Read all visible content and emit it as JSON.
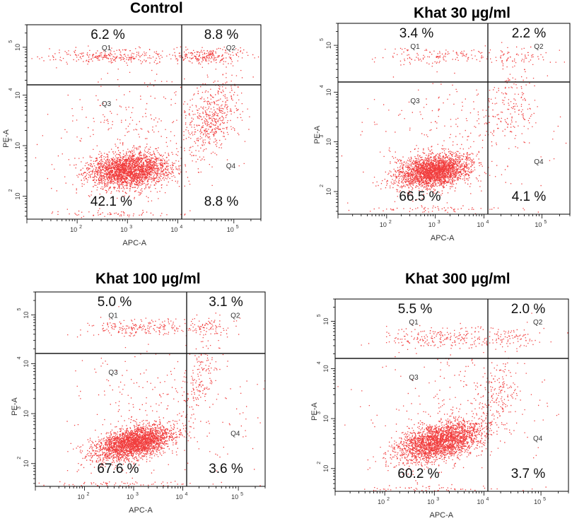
{
  "figure": {
    "colors": {
      "dot": "#ee1c1c",
      "axis": "#000000",
      "label": "#333333",
      "gate": "#1a1a1a"
    }
  },
  "chart_data": [
    {
      "type": "scatter",
      "title": "Control",
      "xlabel": "APC-A",
      "ylabel": "PE-A",
      "x_scale": "log",
      "y_scale": "log",
      "xlim": [
        10,
        300000
      ],
      "ylim": [
        35,
        300000
      ],
      "x_ticks": [
        100,
        1000,
        10000,
        100000
      ],
      "y_ticks": [
        100,
        1000,
        10000,
        100000
      ],
      "x_tick_labels": [
        "10",
        "10",
        "10",
        "10"
      ],
      "y_tick_labels": [
        "10",
        "10",
        "10",
        "10"
      ],
      "tick_exponents": [
        "2",
        "3",
        "4",
        "5"
      ],
      "quadrant_gate": {
        "x": 12000,
        "y": 16000
      },
      "quadrant_labels": [
        "Q1",
        "Q2",
        "Q3",
        "Q4"
      ],
      "quadrant_percent": {
        "Q1": "6.2 %",
        "Q2": "8.8 %",
        "Q3": "42.1 %",
        "Q4": "8.8 %"
      },
      "clusters": [
        {
          "cx": 3.02,
          "cy": 2.52,
          "sx": 0.4,
          "sy": 0.17,
          "n": 2400,
          "rho": 0.1
        },
        {
          "cx": 2.7,
          "cy": 4.82,
          "sx": 0.62,
          "sy": 0.08,
          "n": 260,
          "rho": 0
        },
        {
          "cx": 4.55,
          "cy": 4.82,
          "sx": 0.3,
          "sy": 0.08,
          "n": 220,
          "rho": 0
        },
        {
          "cx": 4.6,
          "cy": 3.55,
          "sx": 0.24,
          "sy": 0.36,
          "n": 480,
          "rho": 0.3
        },
        {
          "cx": 3.3,
          "cy": 3.2,
          "sx": 0.9,
          "sy": 0.7,
          "n": 320,
          "rho": 0
        },
        {
          "cx": 2.8,
          "cy": 1.65,
          "sx": 0.85,
          "sy": 0.03,
          "n": 60,
          "rho": 0
        }
      ]
    },
    {
      "type": "scatter",
      "title": "Khat 30 µg/ml",
      "xlabel": "APC-A",
      "ylabel": "PE-A",
      "x_scale": "log",
      "y_scale": "log",
      "xlim": [
        10,
        300000
      ],
      "ylim": [
        35,
        300000
      ],
      "x_ticks": [
        100,
        1000,
        10000,
        100000
      ],
      "y_ticks": [
        100,
        1000,
        10000,
        100000
      ],
      "x_tick_labels": [
        "10",
        "10",
        "10",
        "10"
      ],
      "y_tick_labels": [
        "10",
        "10",
        "10",
        "10"
      ],
      "tick_exponents": [
        "2",
        "3",
        "4",
        "5"
      ],
      "quadrant_gate": {
        "x": 12000,
        "y": 16000
      },
      "quadrant_labels": [
        "Q1",
        "Q2",
        "Q3",
        "Q4"
      ],
      "quadrant_percent": {
        "Q1": "3.4 %",
        "Q2": "2.2 %",
        "Q3": "66.5 %",
        "Q4": "4.1 %"
      },
      "clusters": [
        {
          "cx": 2.95,
          "cy": 2.42,
          "sx": 0.36,
          "sy": 0.16,
          "n": 2500,
          "rho": 0.25
        },
        {
          "cx": 3.0,
          "cy": 4.78,
          "sx": 0.55,
          "sy": 0.1,
          "n": 130,
          "rho": 0
        },
        {
          "cx": 4.5,
          "cy": 4.75,
          "sx": 0.3,
          "sy": 0.12,
          "n": 80,
          "rho": 0
        },
        {
          "cx": 4.5,
          "cy": 3.7,
          "sx": 0.25,
          "sy": 0.4,
          "n": 160,
          "rho": 0.3
        },
        {
          "cx": 3.3,
          "cy": 3.1,
          "sx": 0.9,
          "sy": 0.7,
          "n": 260,
          "rho": 0
        },
        {
          "cx": 2.9,
          "cy": 1.65,
          "sx": 0.8,
          "sy": 0.03,
          "n": 60,
          "rho": 0
        }
      ]
    },
    {
      "type": "scatter",
      "title": "Khat 100 µg/ml",
      "xlabel": "APC-A",
      "ylabel": "PE-A",
      "x_scale": "log",
      "y_scale": "log",
      "xlim": [
        10,
        300000
      ],
      "ylim": [
        35,
        300000
      ],
      "x_ticks": [
        100,
        1000,
        10000,
        100000
      ],
      "y_ticks": [
        100,
        1000,
        10000,
        100000
      ],
      "x_tick_labels": [
        "10",
        "10",
        "10",
        "10"
      ],
      "y_tick_labels": [
        "10",
        "10",
        "10",
        "10"
      ],
      "tick_exponents": [
        "2",
        "3",
        "4",
        "5"
      ],
      "quadrant_gate": {
        "x": 12000,
        "y": 16000
      },
      "quadrant_labels": [
        "Q1",
        "Q2",
        "Q3",
        "Q4"
      ],
      "quadrant_percent": {
        "Q1": "5.0 %",
        "Q2": "3.1 %",
        "Q3": "67.6 %",
        "Q4": "3.6 %"
      },
      "clusters": [
        {
          "cx": 3.0,
          "cy": 2.42,
          "sx": 0.4,
          "sy": 0.17,
          "n": 2600,
          "rho": 0.45
        },
        {
          "cx": 3.1,
          "cy": 4.75,
          "sx": 0.6,
          "sy": 0.1,
          "n": 200,
          "rho": 0
        },
        {
          "cx": 4.4,
          "cy": 4.75,
          "sx": 0.25,
          "sy": 0.1,
          "n": 90,
          "rho": 0
        },
        {
          "cx": 4.3,
          "cy": 3.7,
          "sx": 0.18,
          "sy": 0.4,
          "n": 150,
          "rho": 0.5
        },
        {
          "cx": 3.4,
          "cy": 3.2,
          "sx": 0.9,
          "sy": 0.7,
          "n": 250,
          "rho": 0
        },
        {
          "cx": 2.8,
          "cy": 1.6,
          "sx": 0.85,
          "sy": 0.03,
          "n": 70,
          "rho": 0
        }
      ]
    },
    {
      "type": "scatter",
      "title": "Khat 300 µg/ml",
      "xlabel": "APC-A",
      "ylabel": "PE-A",
      "x_scale": "log",
      "y_scale": "log",
      "xlim": [
        10,
        300000
      ],
      "ylim": [
        35,
        300000
      ],
      "x_ticks": [
        100,
        1000,
        10000,
        100000
      ],
      "y_ticks": [
        100,
        1000,
        10000,
        100000
      ],
      "x_tick_labels": [
        "10",
        "10",
        "10",
        "10"
      ],
      "y_tick_labels": [
        "10",
        "10",
        "10",
        "10"
      ],
      "tick_exponents": [
        "2",
        "3",
        "4",
        "5"
      ],
      "quadrant_gate": {
        "x": 12000,
        "y": 16000
      },
      "quadrant_labels": [
        "Q1",
        "Q2",
        "Q3",
        "Q4"
      ],
      "quadrant_percent": {
        "Q1": "5.5 %",
        "Q2": "2.0 %",
        "Q3": "60.2 %",
        "Q4": "3.7 %"
      },
      "clusters": [
        {
          "cx": 3.1,
          "cy": 2.55,
          "sx": 0.42,
          "sy": 0.2,
          "n": 2500,
          "rho": 0.45
        },
        {
          "cx": 3.1,
          "cy": 4.65,
          "sx": 0.6,
          "sy": 0.12,
          "n": 220,
          "rho": 0
        },
        {
          "cx": 4.5,
          "cy": 4.65,
          "sx": 0.28,
          "sy": 0.12,
          "n": 80,
          "rho": 0
        },
        {
          "cx": 4.25,
          "cy": 3.5,
          "sx": 0.2,
          "sy": 0.4,
          "n": 170,
          "rho": 0.5
        },
        {
          "cx": 3.4,
          "cy": 3.2,
          "sx": 0.9,
          "sy": 0.7,
          "n": 240,
          "rho": 0
        },
        {
          "cx": 2.9,
          "cy": 1.6,
          "sx": 0.8,
          "sy": 0.03,
          "n": 60,
          "rho": 0
        }
      ]
    }
  ]
}
